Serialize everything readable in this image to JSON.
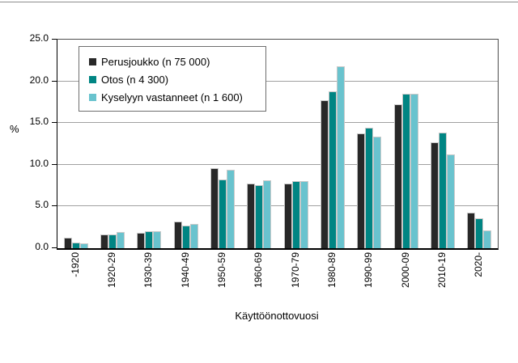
{
  "chart_data": {
    "type": "bar",
    "title": "",
    "xlabel": "Käyttöönottovuosi",
    "ylabel": "%",
    "ylim": [
      0,
      25
    ],
    "ytick_values": [
      0,
      5,
      10,
      15,
      20,
      25
    ],
    "ytick_labels": [
      "0.0",
      "5.0",
      "10.0",
      "15.0",
      "20.0",
      "25.0"
    ],
    "grid": true,
    "legend_position": "top-left-inside",
    "categories": [
      "-1920",
      "1920-29",
      "1930-39",
      "1940-49",
      "1950-59",
      "1960-69",
      "1970-79",
      "1980-89",
      "1990-99",
      "2000-09",
      "2010-19",
      "2020-"
    ],
    "series": [
      {
        "name": "Perusjoukko (n 75 000)",
        "color": "#282828",
        "values": [
          1.3,
          1.6,
          1.8,
          3.2,
          9.6,
          7.8,
          7.8,
          17.7,
          13.8,
          17.2,
          12.7,
          4.3
        ]
      },
      {
        "name": "Otos (n 4 300)",
        "color": "#008583",
        "values": [
          0.7,
          1.6,
          2.0,
          2.7,
          8.2,
          7.6,
          8.0,
          18.8,
          14.4,
          18.5,
          13.9,
          3.6
        ]
      },
      {
        "name": "Kyselyyn vastanneet (n 1 600)",
        "color": "#69c3ce",
        "values": [
          0.6,
          1.9,
          2.0,
          2.9,
          9.4,
          8.1,
          8.0,
          21.8,
          13.4,
          18.5,
          11.2,
          2.1
        ]
      }
    ]
  }
}
